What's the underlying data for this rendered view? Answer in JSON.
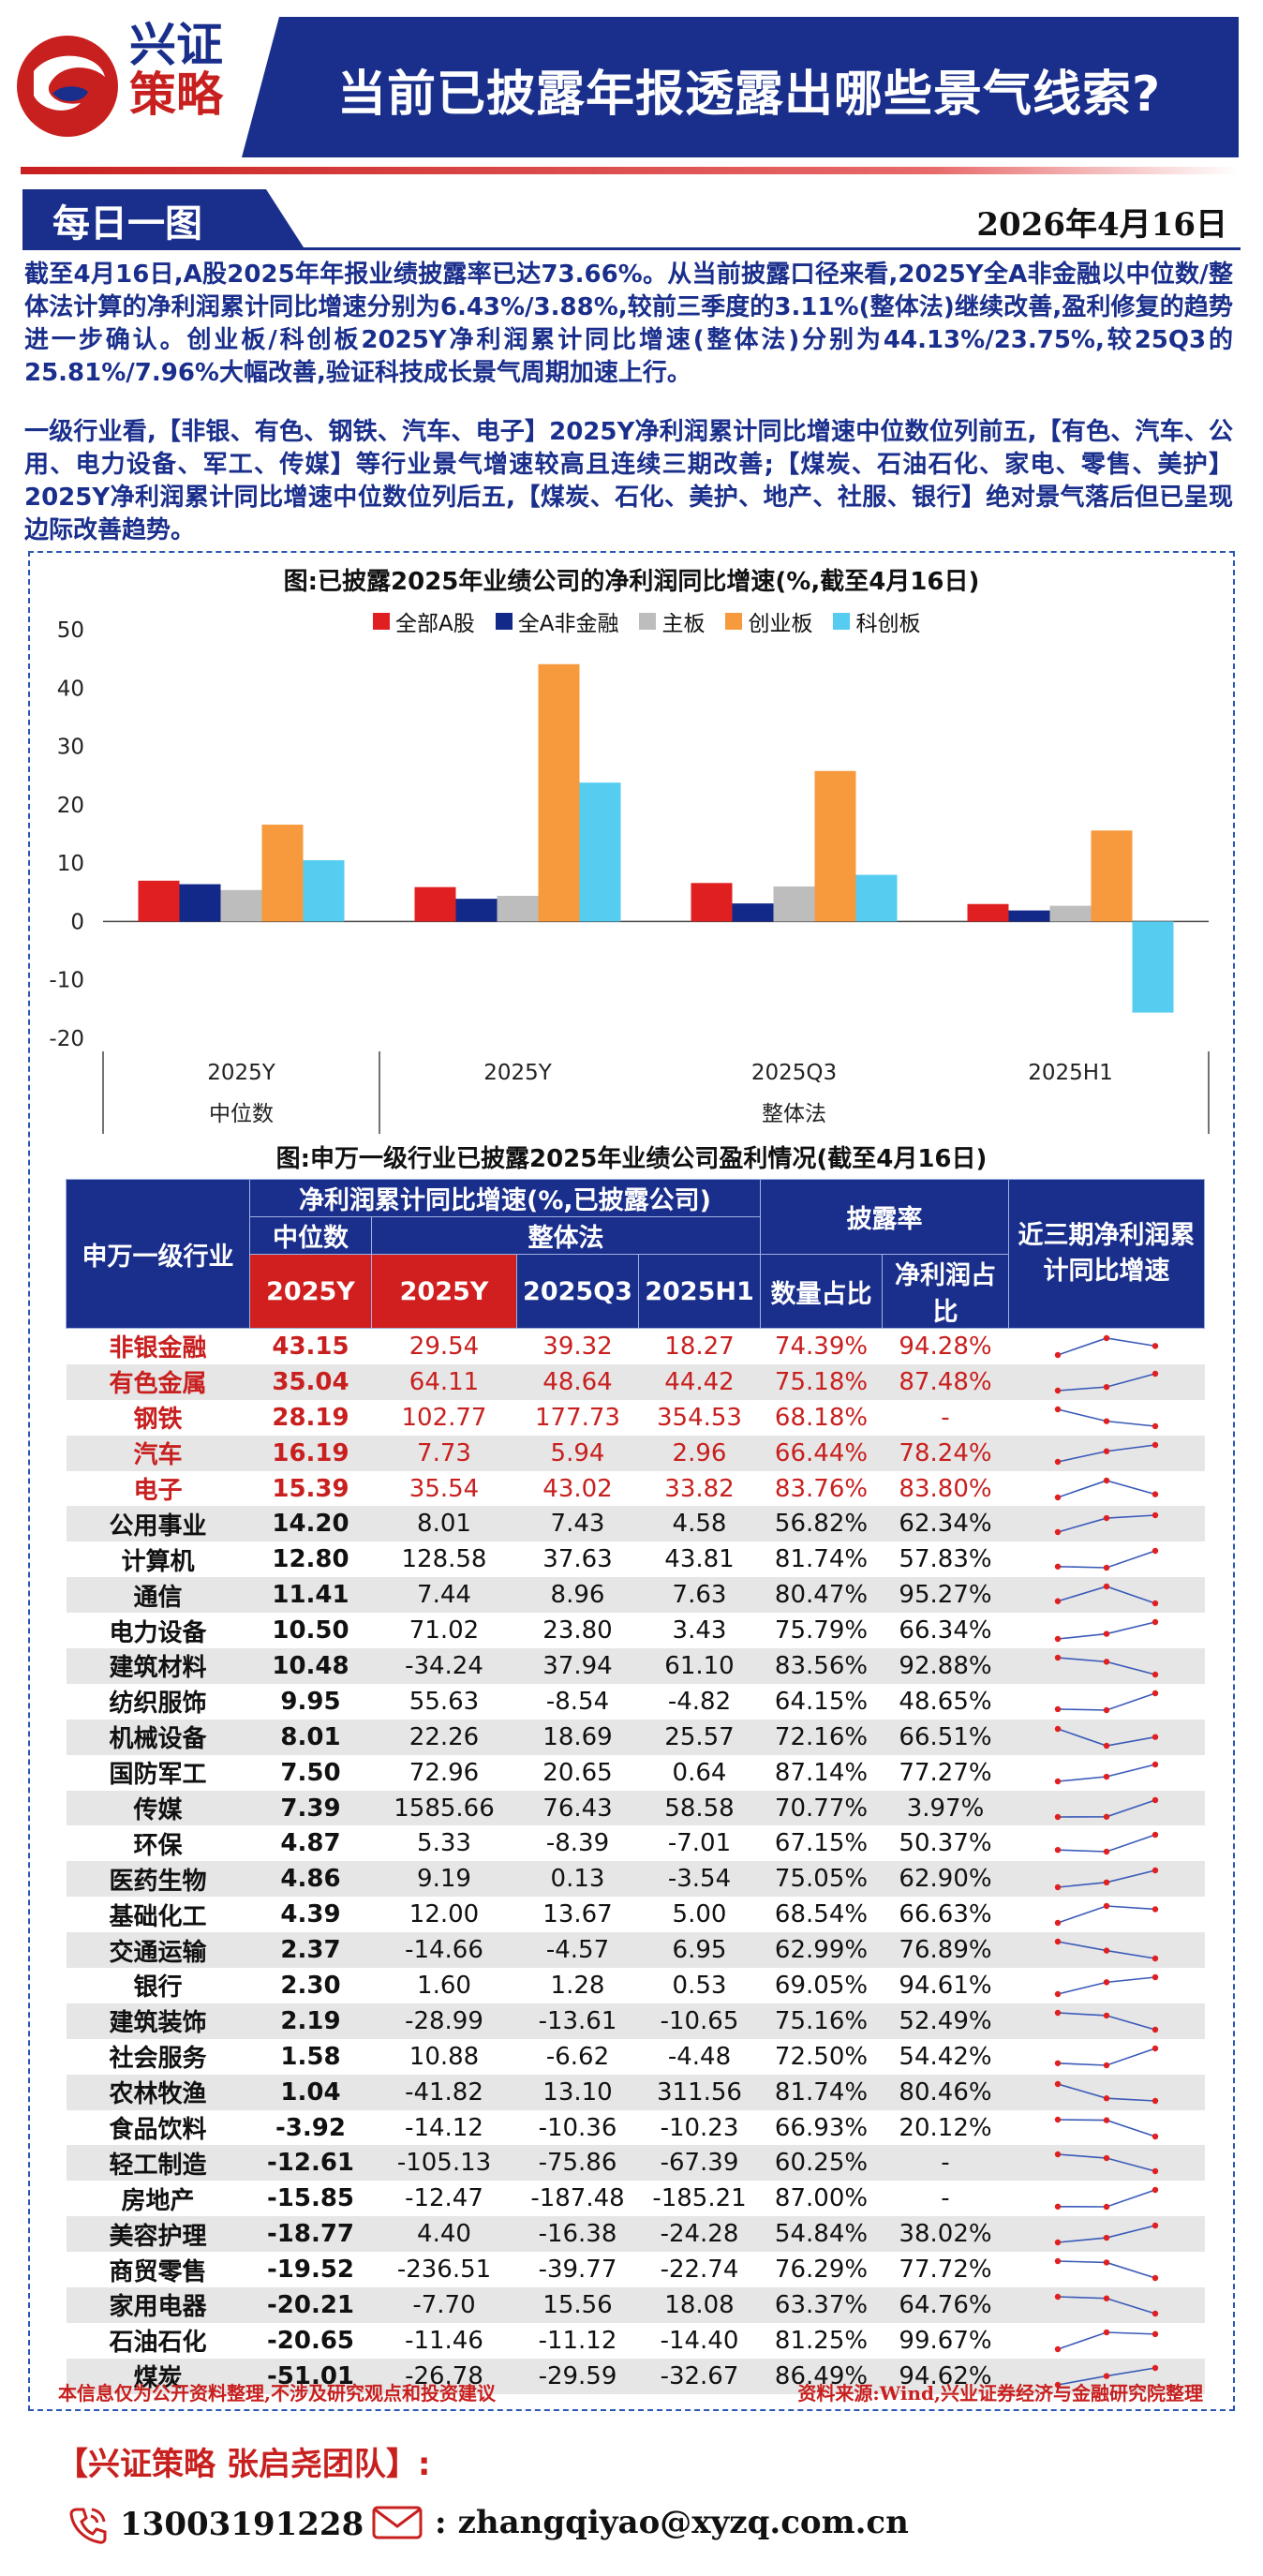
{
  "header": {
    "logo_line1": "兴证",
    "logo_line2": "策略",
    "title": "当前已披露年报透露出哪些景气线索?"
  },
  "daily": {
    "tab_label": "每日一图",
    "date": "2026年4月16日"
  },
  "paragraphs": {
    "p1": "截至4月16日,A股2025年年报业绩披露率已达73.66%。从当前披露口径来看,2025Y全A非金融以中位数/整体法计算的净利润累计同比增速分别为6.43%/3.88%,较前三季度的3.11%(整体法)继续改善,盈利修复的趋势进一步确认。创业板/科创板2025Y净利润累计同比增速(整体法)分别为44.13%/23.75%,较25Q3的25.81%/7.96%大幅改善,验证科技成长景气周期加速上行。",
    "p2": "一级行业看,【非银、有色、钢铁、汽车、电子】2025Y净利润累计同比增速中位数位列前五,【有色、汽车、公用、电力设备、军工、传媒】等行业景气增速较高且连续三期改善;【煤炭、石油石化、家电、零售、美护】2025Y净利润累计同比增速中位数位列后五,【煤炭、石化、美护、地产、社服、银行】绝对景气落后但已呈现边际改善趋势。"
  },
  "colors": {
    "navy": "#1a2f8c",
    "red": "#c8201f",
    "series": [
      "#e02020",
      "#13298a",
      "#bdbdbd",
      "#f79a3e",
      "#55ccf0"
    ]
  },
  "chart_data": {
    "type": "bar",
    "title": "图:已披露2025年业绩公司的净利润同比增速(%,截至4月16日)",
    "categories": [
      "2025Y",
      "2025Y",
      "2025Q3",
      "2025H1"
    ],
    "groups": [
      {
        "label": "中位数",
        "categories": [
          "2025Y"
        ]
      },
      {
        "label": "整体法",
        "categories": [
          "2025Y",
          "2025Q3",
          "2025H1"
        ]
      }
    ],
    "series": [
      {
        "name": "全部A股",
        "values": [
          7.0,
          5.9,
          6.6,
          3.0
        ]
      },
      {
        "name": "全A非金融",
        "values": [
          6.4,
          3.9,
          3.1,
          1.9
        ]
      },
      {
        "name": "主板",
        "values": [
          5.4,
          4.4,
          6.0,
          2.7
        ]
      },
      {
        "name": "创业板",
        "values": [
          16.6,
          44.1,
          25.8,
          15.6
        ]
      },
      {
        "name": "科创板",
        "values": [
          10.5,
          23.8,
          8.0,
          -15.6
        ]
      }
    ],
    "ylim": [
      -20,
      50
    ],
    "yticks": [
      -20,
      -10,
      0,
      10,
      20,
      30,
      40,
      50
    ],
    "legend_position": "top",
    "grid": false
  },
  "table": {
    "title": "图:申万一级行业已披露2025年业绩公司盈利情况(截至4月16日)",
    "headers": {
      "industry": "申万一级行业",
      "growth_group": "净利润累计同比增速(%,已披露公司)",
      "median": "中位数",
      "overall": "整体法",
      "disclosure": "披露率",
      "trend": "近三期净利润累计同比增速",
      "cols": [
        "2025Y",
        "2025Y",
        "2025Q3",
        "2025H1",
        "数量占比",
        "净利润占比"
      ]
    },
    "rows": [
      {
        "name": "非银金融",
        "median": "43.15",
        "y": "29.54",
        "q3": "39.32",
        "h1": "18.27",
        "cnt": "74.39%",
        "np": "94.28%",
        "hl": true,
        "trend": [
          18.27,
          39.32,
          29.54
        ]
      },
      {
        "name": "有色金属",
        "median": "35.04",
        "y": "64.11",
        "q3": "48.64",
        "h1": "44.42",
        "cnt": "75.18%",
        "np": "87.48%",
        "hl": true,
        "trend": [
          44.42,
          48.64,
          64.11
        ]
      },
      {
        "name": "钢铁",
        "median": "28.19",
        "y": "102.77",
        "q3": "177.73",
        "h1": "354.53",
        "cnt": "68.18%",
        "np": "-",
        "hl": true,
        "trend": [
          354.53,
          177.73,
          102.77
        ]
      },
      {
        "name": "汽车",
        "median": "16.19",
        "y": "7.73",
        "q3": "5.94",
        "h1": "2.96",
        "cnt": "66.44%",
        "np": "78.24%",
        "hl": true,
        "trend": [
          2.96,
          5.94,
          7.73
        ]
      },
      {
        "name": "电子",
        "median": "15.39",
        "y": "35.54",
        "q3": "43.02",
        "h1": "33.82",
        "cnt": "83.76%",
        "np": "83.80%",
        "hl": true,
        "trend": [
          33.82,
          43.02,
          35.54
        ]
      },
      {
        "name": "公用事业",
        "median": "14.20",
        "y": "8.01",
        "q3": "7.43",
        "h1": "4.58",
        "cnt": "56.82%",
        "np": "62.34%",
        "hl": false,
        "trend": [
          4.58,
          7.43,
          8.01
        ]
      },
      {
        "name": "计算机",
        "median": "12.80",
        "y": "128.58",
        "q3": "37.63",
        "h1": "43.81",
        "cnt": "81.74%",
        "np": "57.83%",
        "hl": false,
        "trend": [
          43.81,
          37.63,
          128.58
        ]
      },
      {
        "name": "通信",
        "median": "11.41",
        "y": "7.44",
        "q3": "8.96",
        "h1": "7.63",
        "cnt": "80.47%",
        "np": "95.27%",
        "hl": false,
        "trend": [
          7.63,
          8.96,
          7.44
        ]
      },
      {
        "name": "电力设备",
        "median": "10.50",
        "y": "71.02",
        "q3": "23.80",
        "h1": "3.43",
        "cnt": "75.79%",
        "np": "66.34%",
        "hl": false,
        "trend": [
          3.43,
          23.8,
          71.02
        ]
      },
      {
        "name": "建筑材料",
        "median": "10.48",
        "y": "-34.24",
        "q3": "37.94",
        "h1": "61.10",
        "cnt": "83.56%",
        "np": "92.88%",
        "hl": false,
        "trend": [
          61.1,
          37.94,
          -34.24
        ]
      },
      {
        "name": "纺织服饰",
        "median": "9.95",
        "y": "55.63",
        "q3": "-8.54",
        "h1": "-4.82",
        "cnt": "64.15%",
        "np": "48.65%",
        "hl": false,
        "trend": [
          -4.82,
          -8.54,
          55.63
        ]
      },
      {
        "name": "机械设备",
        "median": "8.01",
        "y": "22.26",
        "q3": "18.69",
        "h1": "25.57",
        "cnt": "72.16%",
        "np": "66.51%",
        "hl": false,
        "trend": [
          25.57,
          18.69,
          22.26
        ]
      },
      {
        "name": "国防军工",
        "median": "7.50",
        "y": "72.96",
        "q3": "20.65",
        "h1": "0.64",
        "cnt": "87.14%",
        "np": "77.27%",
        "hl": false,
        "trend": [
          0.64,
          20.65,
          72.96
        ]
      },
      {
        "name": "传媒",
        "median": "7.39",
        "y": "1585.66",
        "q3": "76.43",
        "h1": "58.58",
        "cnt": "70.77%",
        "np": "3.97%",
        "hl": false,
        "trend": [
          58.58,
          76.43,
          1585.66
        ]
      },
      {
        "name": "环保",
        "median": "4.87",
        "y": "5.33",
        "q3": "-8.39",
        "h1": "-7.01",
        "cnt": "67.15%",
        "np": "50.37%",
        "hl": false,
        "trend": [
          -7.01,
          -8.39,
          5.33
        ]
      },
      {
        "name": "医药生物",
        "median": "4.86",
        "y": "9.19",
        "q3": "0.13",
        "h1": "-3.54",
        "cnt": "75.05%",
        "np": "62.90%",
        "hl": false,
        "trend": [
          -3.54,
          0.13,
          9.19
        ]
      },
      {
        "name": "基础化工",
        "median": "4.39",
        "y": "12.00",
        "q3": "13.67",
        "h1": "5.00",
        "cnt": "68.54%",
        "np": "66.63%",
        "hl": false,
        "trend": [
          5.0,
          13.67,
          12.0
        ]
      },
      {
        "name": "交通运输",
        "median": "2.37",
        "y": "-14.66",
        "q3": "-4.57",
        "h1": "6.95",
        "cnt": "62.99%",
        "np": "76.89%",
        "hl": false,
        "trend": [
          6.95,
          -4.57,
          -14.66
        ]
      },
      {
        "name": "银行",
        "median": "2.30",
        "y": "1.60",
        "q3": "1.28",
        "h1": "0.53",
        "cnt": "69.05%",
        "np": "94.61%",
        "hl": false,
        "trend": [
          0.53,
          1.28,
          1.6
        ]
      },
      {
        "name": "建筑装饰",
        "median": "2.19",
        "y": "-28.99",
        "q3": "-13.61",
        "h1": "-10.65",
        "cnt": "75.16%",
        "np": "52.49%",
        "hl": false,
        "trend": [
          -10.65,
          -13.61,
          -28.99
        ]
      },
      {
        "name": "社会服务",
        "median": "1.58",
        "y": "10.88",
        "q3": "-6.62",
        "h1": "-4.48",
        "cnt": "72.50%",
        "np": "54.42%",
        "hl": false,
        "trend": [
          -4.48,
          -6.62,
          10.88
        ]
      },
      {
        "name": "农林牧渔",
        "median": "1.04",
        "y": "-41.82",
        "q3": "13.10",
        "h1": "311.56",
        "cnt": "81.74%",
        "np": "80.46%",
        "hl": false,
        "trend": [
          311.56,
          13.1,
          -41.82
        ]
      },
      {
        "name": "食品饮料",
        "median": "-3.92",
        "y": "-14.12",
        "q3": "-10.36",
        "h1": "-10.23",
        "cnt": "66.93%",
        "np": "20.12%",
        "hl": false,
        "trend": [
          -10.23,
          -10.36,
          -14.12
        ]
      },
      {
        "name": "轻工制造",
        "median": "-12.61",
        "y": "-105.13",
        "q3": "-75.86",
        "h1": "-67.39",
        "cnt": "60.25%",
        "np": "-",
        "hl": false,
        "trend": [
          -67.39,
          -75.86,
          -105.13
        ]
      },
      {
        "name": "房地产",
        "median": "-15.85",
        "y": "-12.47",
        "q3": "-187.48",
        "h1": "-185.21",
        "cnt": "87.00%",
        "np": "-",
        "hl": false,
        "trend": [
          -185.21,
          -187.48,
          -12.47
        ]
      },
      {
        "name": "美容护理",
        "median": "-18.77",
        "y": "4.40",
        "q3": "-16.38",
        "h1": "-24.28",
        "cnt": "54.84%",
        "np": "38.02%",
        "hl": false,
        "trend": [
          -24.28,
          -16.38,
          4.4
        ]
      },
      {
        "name": "商贸零售",
        "median": "-19.52",
        "y": "-236.51",
        "q3": "-39.77",
        "h1": "-22.74",
        "cnt": "76.29%",
        "np": "77.72%",
        "hl": false,
        "trend": [
          -22.74,
          -39.77,
          -236.51
        ]
      },
      {
        "name": "家用电器",
        "median": "-20.21",
        "y": "-7.70",
        "q3": "15.56",
        "h1": "18.08",
        "cnt": "63.37%",
        "np": "64.76%",
        "hl": false,
        "trend": [
          18.08,
          15.56,
          -7.7
        ]
      },
      {
        "name": "石油石化",
        "median": "-20.65",
        "y": "-11.46",
        "q3": "-11.12",
        "h1": "-14.40",
        "cnt": "81.25%",
        "np": "99.67%",
        "hl": false,
        "trend": [
          -14.4,
          -11.12,
          -11.46
        ]
      },
      {
        "name": "煤炭",
        "median": "-51.01",
        "y": "-26.78",
        "q3": "-29.59",
        "h1": "-32.67",
        "cnt": "86.49%",
        "np": "94.62%",
        "hl": false,
        "trend": [
          -32.67,
          -29.59,
          -26.78
        ]
      }
    ]
  },
  "footer": {
    "disclaimer": "本信息仅为公开资料整理,不涉及研究观点和投资建议",
    "source": "资料来源:Wind,兴业证券经济与金融研究院整理"
  },
  "contact": {
    "title": "【兴证策略 张启尧团队】:",
    "phone": "13003191228",
    "email": "zhangqiyao@xyzq.com.cn"
  }
}
